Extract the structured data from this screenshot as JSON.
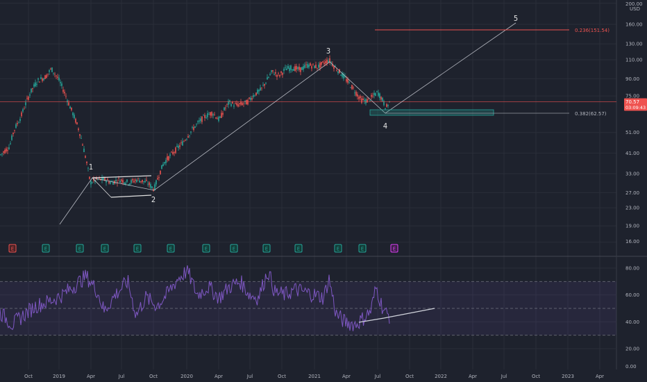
{
  "chart_data": {
    "type": "candlestick",
    "currency": "USD",
    "x_ticks": [
      "Oct",
      "2019",
      "Apr",
      "Jul",
      "Oct",
      "2020",
      "Apr",
      "Jul",
      "Oct",
      "2021",
      "Apr",
      "Jul",
      "Oct",
      "2022",
      "Apr",
      "Jul",
      "Oct",
      "2023",
      "Apr"
    ],
    "price_ticks": [
      "200.00",
      "160.00",
      "130.00",
      "110.00",
      "90.00",
      "75.00",
      "51.00",
      "41.00",
      "33.00",
      "27.00",
      "23.00",
      "19.00",
      "16.00"
    ],
    "price_axis_top_label": "USD",
    "last_price": {
      "value": "70.57",
      "countdown": "03:09:43"
    },
    "price_line": 70.57,
    "wave_labels": [
      "1",
      "2",
      "3",
      "4",
      "5"
    ],
    "fib_levels": [
      {
        "label": "0.382(62.57)",
        "value": 62.57
      },
      {
        "label": "0.236(151.54)",
        "value": 151.54
      }
    ],
    "earnings_markers": [
      "E",
      "E",
      "E",
      "E",
      "E",
      "E",
      "E",
      "E",
      "E",
      "E",
      "E",
      "E",
      "E"
    ],
    "rsi": {
      "ticks": [
        "80.00",
        "60.00",
        "40.00",
        "20.00",
        "0.00"
      ],
      "upper_band": 70,
      "middle_band": 50,
      "lower_band": 30
    }
  }
}
